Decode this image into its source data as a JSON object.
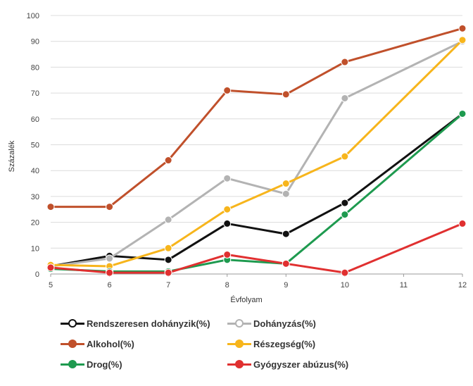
{
  "chart_data": {
    "type": "line",
    "title": "",
    "xlabel": "Évfolyam",
    "ylabel": "Százalék",
    "x": [
      5,
      6,
      7,
      8,
      9,
      10,
      12
    ],
    "x_ticks": [
      "5",
      "6",
      "7",
      "8",
      "9",
      "10",
      "11",
      "12"
    ],
    "y_ticks": [
      "0",
      "10",
      "20",
      "30",
      "40",
      "50",
      "60",
      "70",
      "80",
      "90",
      "100"
    ],
    "xlim": [
      5,
      12
    ],
    "ylim": [
      0,
      100
    ],
    "grid": "horizontal",
    "legend_position": "bottom",
    "series": [
      {
        "name": "Rendszeresen dohányzik(%)",
        "color": "#111111",
        "values": [
          3,
          7,
          5.5,
          19.5,
          15.5,
          27.5,
          62
        ]
      },
      {
        "name": "Dohányzás(%)",
        "color": "#b3b3b3",
        "values": [
          3,
          6,
          21,
          37,
          31,
          68,
          90
        ]
      },
      {
        "name": "Alkohol(%)",
        "color": "#c0502b",
        "values": [
          26,
          26,
          44,
          71,
          69.5,
          82,
          95
        ]
      },
      {
        "name": "Részegség(%)",
        "color": "#f7b51c",
        "values": [
          3.5,
          3,
          10,
          25,
          35,
          45.5,
          90.5
        ]
      },
      {
        "name": "Drog(%)",
        "color": "#1e9a4f",
        "values": [
          2,
          1,
          1,
          5.5,
          4,
          23,
          62
        ]
      },
      {
        "name": "Gyógyszer abúzus(%)",
        "color": "#e03030",
        "values": [
          2.5,
          0.5,
          0.5,
          7.5,
          4,
          0.5,
          19.5
        ]
      }
    ]
  }
}
